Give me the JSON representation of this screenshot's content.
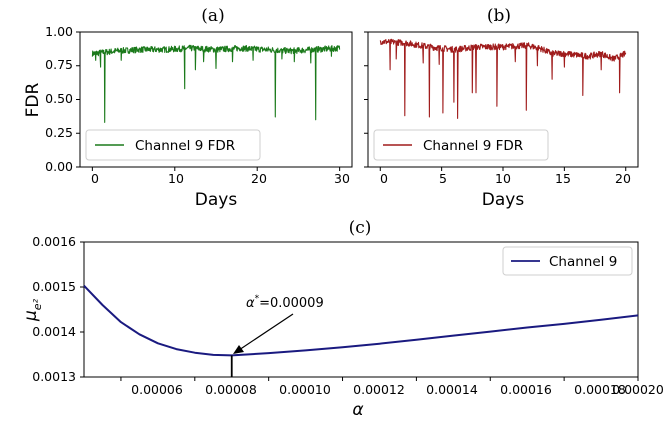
{
  "chart_data": [
    {
      "panel_label": "(a)",
      "type": "line",
      "xlabel": "Days",
      "ylabel": "FDR",
      "xlim": [
        -1.5,
        31.5
      ],
      "ylim": [
        0.0,
        1.0
      ],
      "xticks": [
        "0",
        "10",
        "20",
        "30"
      ],
      "xtick_values": [
        0,
        10,
        20,
        30
      ],
      "yticks": [
        "0.00",
        "0.25",
        "0.50",
        "0.75",
        "1.00"
      ],
      "ytick_values": [
        0.0,
        0.25,
        0.5,
        0.75,
        1.0
      ],
      "legend": "lower-left",
      "color": "#1b7a1b",
      "series": [
        {
          "name": "Channel 9 FDR",
          "baseline": [
            [
              0,
              0.84
            ],
            [
              3,
              0.86
            ],
            [
              6,
              0.87
            ],
            [
              9,
              0.87
            ],
            [
              12,
              0.88
            ],
            [
              15,
              0.87
            ],
            [
              18,
              0.88
            ],
            [
              21,
              0.87
            ],
            [
              24,
              0.86
            ],
            [
              27,
              0.87
            ],
            [
              30,
              0.88
            ]
          ],
          "dips": [
            [
              0.4,
              0.79
            ],
            [
              1.0,
              0.74
            ],
            [
              1.5,
              0.33
            ],
            [
              3.5,
              0.79
            ],
            [
              11.2,
              0.58
            ],
            [
              12.5,
              0.72
            ],
            [
              13.5,
              0.78
            ],
            [
              15.0,
              0.73
            ],
            [
              17.0,
              0.78
            ],
            [
              19.5,
              0.79
            ],
            [
              22.2,
              0.37
            ],
            [
              23.0,
              0.8
            ],
            [
              24.5,
              0.78
            ],
            [
              26.5,
              0.77
            ],
            [
              27.1,
              0.35
            ],
            [
              29.0,
              0.82
            ]
          ]
        }
      ]
    },
    {
      "panel_label": "(b)",
      "type": "line",
      "xlabel": "Days",
      "ylabel": "",
      "xlim": [
        -1.0,
        21.0
      ],
      "ylim": [
        0.0,
        1.0
      ],
      "xticks": [
        "0",
        "5",
        "10",
        "15",
        "20"
      ],
      "xtick_values": [
        0,
        5,
        10,
        15,
        20
      ],
      "yticks": [],
      "legend": "lower-left",
      "color": "#a01c1c",
      "series": [
        {
          "name": "Channel 9 FDR",
          "baseline": [
            [
              0,
              0.93
            ],
            [
              2,
              0.92
            ],
            [
              4,
              0.89
            ],
            [
              6,
              0.87
            ],
            [
              8,
              0.89
            ],
            [
              10,
              0.89
            ],
            [
              12,
              0.9
            ],
            [
              13,
              0.88
            ],
            [
              14,
              0.84
            ],
            [
              15,
              0.84
            ],
            [
              17,
              0.82
            ],
            [
              18,
              0.84
            ],
            [
              19,
              0.8
            ],
            [
              20,
              0.84
            ]
          ],
          "dips": [
            [
              0.8,
              0.72
            ],
            [
              1.3,
              0.8
            ],
            [
              2.0,
              0.38
            ],
            [
              3.5,
              0.77
            ],
            [
              4.0,
              0.37
            ],
            [
              4.8,
              0.76
            ],
            [
              5.1,
              0.4
            ],
            [
              6.0,
              0.48
            ],
            [
              6.3,
              0.36
            ],
            [
              7.5,
              0.55
            ],
            [
              7.8,
              0.55
            ],
            [
              9.5,
              0.45
            ],
            [
              11.0,
              0.78
            ],
            [
              11.9,
              0.42
            ],
            [
              12.8,
              0.75
            ],
            [
              14.0,
              0.65
            ],
            [
              15.0,
              0.74
            ],
            [
              16.5,
              0.53
            ],
            [
              18.0,
              0.72
            ],
            [
              19.5,
              0.55
            ]
          ]
        }
      ]
    },
    {
      "panel_label": "(c)",
      "type": "line",
      "xlabel": "α",
      "ylabel": "μ",
      "ylabel_sub": "e²",
      "xlim": [
        5e-05,
        0.0002
      ],
      "ylim": [
        0.0013,
        0.0016
      ],
      "xticks": [
        "0.00006",
        "0.00008",
        "0.00010",
        "0.00012",
        "0.00014",
        "0.00016",
        "0.00018",
        "0.00020"
      ],
      "xtick_values": [
        6e-05,
        8e-05,
        0.0001,
        0.00012,
        0.00014,
        0.00016,
        0.00018,
        0.0002
      ],
      "yticks": [
        "0.0013",
        "0.0014",
        "0.0015",
        "0.0016"
      ],
      "ytick_values": [
        0.0013,
        0.0014,
        0.0015,
        0.0016
      ],
      "legend": "top-right",
      "color": "#1a1a80",
      "series": [
        {
          "name": "Channel 9",
          "x": [
            5e-05,
            5.5e-05,
            6e-05,
            6.5e-05,
            7e-05,
            7.5e-05,
            8e-05,
            8.5e-05,
            9e-05,
            0.0001,
            0.00011,
            0.00012,
            0.00013,
            0.00014,
            0.00015,
            0.00016,
            0.00017,
            0.00018,
            0.00019,
            0.0002
          ],
          "y": [
            0.001503,
            0.00146,
            0.001422,
            0.001395,
            0.001375,
            0.001362,
            0.001354,
            0.001349,
            0.001348,
            0.001353,
            0.001359,
            0.001366,
            0.001374,
            0.001383,
            0.001392,
            0.001401,
            0.00141,
            0.001418,
            0.001427,
            0.001437
          ]
        }
      ],
      "annotation": {
        "text_prefix": "α",
        "text_sup": "*",
        "text_suffix": "=0.00009",
        "x": 9e-05
      }
    }
  ]
}
